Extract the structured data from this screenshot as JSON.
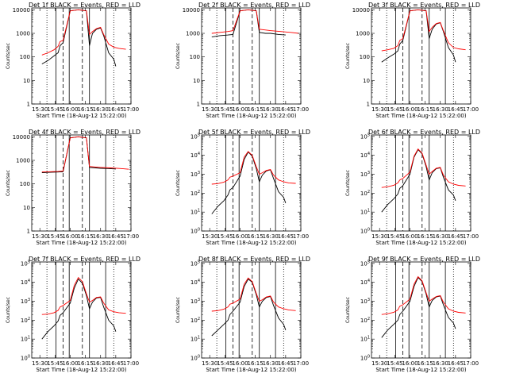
{
  "figure": {
    "xlabel": "Start Time (18-Aug-12 15:22:00)",
    "ylabel": "Counts/sec"
  },
  "colors": {
    "events": "#000000",
    "lld": "#ff0000",
    "axes": "#000000",
    "background": "#ffffff"
  },
  "chart_data": [
    {
      "type": "line",
      "title": "Det 1f BLACK = Events, RED = LLD",
      "yscale": "log",
      "xlim": [
        "15:22",
        "17:00"
      ],
      "ylim": [
        1,
        12000
      ],
      "xticks": [
        "15:30",
        "15:45",
        "16:00",
        "16:15",
        "16:30",
        "16:45",
        "17:00"
      ],
      "yticks": [
        "1",
        "10",
        "100",
        "1000",
        "10000"
      ],
      "series": [
        {
          "name": "Events",
          "color": "#000000",
          "x": [
            "15:32",
            "15:38",
            "15:44",
            "15:48",
            "15:50",
            "15:53",
            "16:00",
            "16:08",
            "16:16",
            "16:19",
            "16:22",
            "16:26",
            "16:30",
            "16:33",
            "16:38",
            "16:43",
            "16:45"
          ],
          "values": [
            50,
            70,
            110,
            150,
            300,
            400,
            9000,
            10000,
            9000,
            300,
            1000,
            1500,
            1700,
            800,
            150,
            80,
            40
          ]
        },
        {
          "name": "LLD",
          "color": "#ff0000",
          "x": [
            "15:32",
            "15:38",
            "15:44",
            "15:48",
            "15:50",
            "15:53",
            "16:00",
            "16:08",
            "16:16",
            "16:19",
            "16:22",
            "16:26",
            "16:30",
            "16:33",
            "16:38",
            "16:43",
            "16:48",
            "16:55"
          ],
          "values": [
            120,
            150,
            200,
            280,
            450,
            500,
            9000,
            10000,
            9000,
            900,
            1200,
            1600,
            1800,
            900,
            350,
            260,
            230,
            210
          ]
        }
      ]
    },
    {
      "type": "line",
      "title": "Det 2f BLACK = Events, RED = LLD",
      "yscale": "log",
      "xlim": [
        "15:22",
        "17:00"
      ],
      "ylim": [
        1,
        12000
      ],
      "xticks": [
        "15:30",
        "15:45",
        "16:00",
        "16:15",
        "16:30",
        "16:45",
        "17:00"
      ],
      "yticks": [
        "1",
        "10",
        "100",
        "1000",
        "10000"
      ],
      "series": [
        {
          "name": "Events",
          "color": "#000000",
          "x": [
            "15:32",
            "15:40",
            "15:48",
            "15:53",
            "16:00",
            "16:08",
            "16:16",
            "16:19",
            "16:25",
            "16:30",
            "16:38",
            "16:45"
          ],
          "values": [
            700,
            800,
            850,
            900,
            9000,
            10000,
            9000,
            1100,
            1000,
            1000,
            900,
            850
          ]
        },
        {
          "name": "LLD",
          "color": "#ff0000",
          "x": [
            "15:32",
            "15:40",
            "15:48",
            "15:53",
            "16:00",
            "16:08",
            "16:16",
            "16:19",
            "16:30",
            "16:40",
            "16:50",
            "16:58"
          ],
          "values": [
            1000,
            1100,
            1200,
            1300,
            9000,
            10000,
            9000,
            1500,
            1300,
            1200,
            1100,
            1000
          ]
        }
      ]
    },
    {
      "type": "line",
      "title": "Det 3f BLACK = Events, RED = LLD",
      "yscale": "log",
      "xlim": [
        "15:22",
        "17:00"
      ],
      "ylim": [
        1,
        12000
      ],
      "xticks": [
        "15:30",
        "15:45",
        "16:00",
        "16:15",
        "16:30",
        "16:45",
        "17:00"
      ],
      "yticks": [
        "1",
        "10",
        "100",
        "1000",
        "10000"
      ],
      "series": [
        {
          "name": "Events",
          "color": "#000000",
          "x": [
            "15:32",
            "15:38",
            "15:44",
            "15:48",
            "15:50",
            "15:53",
            "16:00",
            "16:08",
            "16:16",
            "16:19",
            "16:22",
            "16:26",
            "16:30",
            "16:33",
            "16:38",
            "16:43",
            "16:45"
          ],
          "values": [
            60,
            90,
            130,
            180,
            350,
            500,
            9000,
            10000,
            9000,
            600,
            1500,
            2500,
            2800,
            1200,
            250,
            120,
            60
          ]
        },
        {
          "name": "LLD",
          "color": "#ff0000",
          "x": [
            "15:32",
            "15:38",
            "15:44",
            "15:48",
            "15:50",
            "15:53",
            "16:00",
            "16:08",
            "16:16",
            "16:19",
            "16:22",
            "16:26",
            "16:30",
            "16:33",
            "16:38",
            "16:43",
            "16:48",
            "16:55"
          ],
          "values": [
            180,
            200,
            230,
            300,
            500,
            600,
            9000,
            10000,
            9000,
            1200,
            1800,
            2600,
            2900,
            1300,
            400,
            250,
            220,
            200
          ]
        }
      ]
    },
    {
      "type": "line",
      "title": "Det 4f BLACK = Events, RED = LLD",
      "yscale": "log",
      "xlim": [
        "15:22",
        "17:00"
      ],
      "ylim": [
        1,
        12000
      ],
      "xticks": [
        "15:30",
        "15:45",
        "16:00",
        "16:15",
        "16:30",
        "16:45",
        "17:00"
      ],
      "yticks": [
        "1",
        "10",
        "100",
        "1000",
        "10000"
      ],
      "series": [
        {
          "name": "Events",
          "color": "#000000",
          "x": [
            "15:32",
            "15:40",
            "15:48",
            "15:53",
            "16:00",
            "16:08",
            "16:16",
            "16:19",
            "16:25",
            "16:30",
            "16:38",
            "16:45"
          ],
          "values": [
            300,
            310,
            320,
            330,
            9000,
            10000,
            9000,
            500,
            480,
            460,
            450,
            430
          ]
        },
        {
          "name": "LLD",
          "color": "#ff0000",
          "x": [
            "15:32",
            "15:40",
            "15:48",
            "15:53",
            "16:00",
            "16:08",
            "16:16",
            "16:19",
            "16:30",
            "16:40",
            "16:50",
            "16:58"
          ],
          "values": [
            320,
            330,
            340,
            350,
            9000,
            10000,
            9000,
            550,
            500,
            480,
            450,
            420
          ]
        }
      ]
    },
    {
      "type": "line",
      "title": "Det 5f BLACK = Events, RED = LLD",
      "yscale": "log",
      "xlim": [
        "15:22",
        "17:00"
      ],
      "ylim": [
        1,
        120000
      ],
      "xticks": [
        "15:30",
        "15:45",
        "16:00",
        "16:15",
        "16:30",
        "16:45",
        "17:00"
      ],
      "yticks": [
        "10^0",
        "10^1",
        "10^2",
        "10^3",
        "10^4",
        "10^5"
      ],
      "series": [
        {
          "name": "Events",
          "color": "#000000",
          "x": [
            "15:32",
            "15:38",
            "15:44",
            "15:48",
            "15:50",
            "15:53",
            "16:00",
            "16:04",
            "16:08",
            "16:12",
            "16:16",
            "16:19",
            "16:22",
            "16:26",
            "16:30",
            "16:33",
            "16:38",
            "16:43",
            "16:45"
          ],
          "values": [
            8,
            20,
            40,
            80,
            150,
            200,
            800,
            6000,
            15000,
            9000,
            2000,
            400,
            900,
            1500,
            1700,
            600,
            120,
            60,
            30
          ]
        },
        {
          "name": "LLD",
          "color": "#ff0000",
          "x": [
            "15:32",
            "15:38",
            "15:44",
            "15:48",
            "15:50",
            "15:53",
            "16:00",
            "16:04",
            "16:08",
            "16:12",
            "16:16",
            "16:19",
            "16:22",
            "16:26",
            "16:30",
            "16:33",
            "16:38",
            "16:43",
            "16:48",
            "16:55"
          ],
          "values": [
            300,
            320,
            380,
            500,
            700,
            800,
            1200,
            8000,
            16000,
            10000,
            2500,
            1000,
            1200,
            1600,
            1800,
            900,
            500,
            400,
            350,
            330
          ]
        }
      ]
    },
    {
      "type": "line",
      "title": "Det 6f BLACK = Events, RED = LLD",
      "yscale": "log",
      "xlim": [
        "15:22",
        "17:00"
      ],
      "ylim": [
        1,
        120000
      ],
      "xticks": [
        "15:30",
        "15:45",
        "16:00",
        "16:15",
        "16:30",
        "16:45",
        "17:00"
      ],
      "yticks": [
        "10^0",
        "10^1",
        "10^2",
        "10^3",
        "10^4",
        "10^5"
      ],
      "series": [
        {
          "name": "Events",
          "color": "#000000",
          "x": [
            "15:32",
            "15:38",
            "15:44",
            "15:48",
            "15:50",
            "15:53",
            "16:00",
            "16:04",
            "16:08",
            "16:12",
            "16:16",
            "16:19",
            "16:22",
            "16:26",
            "16:30",
            "16:33",
            "16:38",
            "16:43",
            "16:45"
          ],
          "values": [
            10,
            25,
            50,
            90,
            180,
            250,
            1000,
            8000,
            20000,
            12000,
            2500,
            500,
            1200,
            2000,
            2200,
            700,
            150,
            80,
            40
          ]
        },
        {
          "name": "LLD",
          "color": "#ff0000",
          "x": [
            "15:32",
            "15:38",
            "15:44",
            "15:48",
            "15:50",
            "15:53",
            "16:00",
            "16:04",
            "16:08",
            "16:12",
            "16:16",
            "16:19",
            "16:22",
            "16:26",
            "16:30",
            "16:33",
            "16:38",
            "16:43",
            "16:48",
            "16:55"
          ],
          "values": [
            200,
            220,
            260,
            350,
            500,
            600,
            1300,
            9000,
            22000,
            13000,
            3000,
            1000,
            1400,
            2100,
            2300,
            900,
            400,
            300,
            260,
            240
          ]
        }
      ]
    },
    {
      "type": "line",
      "title": "Det 7f BLACK = Events, RED = LLD",
      "yscale": "log",
      "xlim": [
        "15:22",
        "17:00"
      ],
      "ylim": [
        1,
        120000
      ],
      "xticks": [
        "15:30",
        "15:45",
        "16:00",
        "16:15",
        "16:30",
        "16:45",
        "17:00"
      ],
      "yticks": [
        "10^0",
        "10^1",
        "10^2",
        "10^3",
        "10^4",
        "10^5"
      ],
      "series": [
        {
          "name": "Events",
          "color": "#000000",
          "x": [
            "15:32",
            "15:38",
            "15:44",
            "15:48",
            "15:50",
            "15:53",
            "16:00",
            "16:04",
            "16:08",
            "16:12",
            "16:16",
            "16:19",
            "16:22",
            "16:26",
            "16:30",
            "16:33",
            "16:38",
            "16:43",
            "16:45"
          ],
          "values": [
            10,
            25,
            50,
            90,
            180,
            250,
            800,
            5000,
            15000,
            9000,
            2000,
            400,
            900,
            1500,
            1600,
            500,
            100,
            50,
            25
          ]
        },
        {
          "name": "LLD",
          "color": "#ff0000",
          "x": [
            "15:32",
            "15:38",
            "15:44",
            "15:48",
            "15:50",
            "15:53",
            "16:00",
            "16:04",
            "16:08",
            "16:12",
            "16:16",
            "16:19",
            "16:22",
            "16:26",
            "16:30",
            "16:33",
            "16:38",
            "16:43",
            "16:48",
            "16:55"
          ],
          "values": [
            200,
            210,
            250,
            330,
            500,
            600,
            1100,
            7000,
            18000,
            11000,
            2500,
            900,
            1100,
            1600,
            1700,
            800,
            350,
            280,
            250,
            230
          ]
        }
      ]
    },
    {
      "type": "line",
      "title": "Det 8f BLACK = Events, RED = LLD",
      "yscale": "log",
      "xlim": [
        "15:22",
        "17:00"
      ],
      "ylim": [
        1,
        120000
      ],
      "xticks": [
        "15:30",
        "15:45",
        "16:00",
        "16:15",
        "16:30",
        "16:45",
        "17:00"
      ],
      "yticks": [
        "10^0",
        "10^1",
        "10^2",
        "10^3",
        "10^4",
        "10^5"
      ],
      "series": [
        {
          "name": "Events",
          "color": "#000000",
          "x": [
            "15:32",
            "15:38",
            "15:44",
            "15:48",
            "15:50",
            "15:53",
            "16:00",
            "16:04",
            "16:08",
            "16:12",
            "16:16",
            "16:19",
            "16:22",
            "16:26",
            "16:30",
            "16:33",
            "16:38",
            "16:43",
            "16:45"
          ],
          "values": [
            15,
            30,
            60,
            100,
            200,
            300,
            900,
            6000,
            15000,
            10000,
            2200,
            500,
            1000,
            1600,
            1800,
            600,
            130,
            60,
            30
          ]
        },
        {
          "name": "LLD",
          "color": "#ff0000",
          "x": [
            "15:32",
            "15:38",
            "15:44",
            "15:48",
            "15:50",
            "15:53",
            "16:00",
            "16:04",
            "16:08",
            "16:12",
            "16:16",
            "16:19",
            "16:22",
            "16:26",
            "16:30",
            "16:33",
            "16:38",
            "16:43",
            "16:48",
            "16:55"
          ],
          "values": [
            300,
            320,
            380,
            500,
            700,
            800,
            1300,
            8000,
            17000,
            11000,
            2600,
            1000,
            1200,
            1700,
            1900,
            900,
            500,
            400,
            350,
            320
          ]
        }
      ]
    },
    {
      "type": "line",
      "title": "Det 9f BLACK = Events, RED = LLD",
      "yscale": "log",
      "xlim": [
        "15:22",
        "17:00"
      ],
      "ylim": [
        1,
        120000
      ],
      "xticks": [
        "15:30",
        "15:45",
        "16:00",
        "16:15",
        "16:30",
        "16:45",
        "17:00"
      ],
      "yticks": [
        "10^0",
        "10^1",
        "10^2",
        "10^3",
        "10^4",
        "10^5"
      ],
      "series": [
        {
          "name": "Events",
          "color": "#000000",
          "x": [
            "15:32",
            "15:38",
            "15:44",
            "15:48",
            "15:50",
            "15:53",
            "16:00",
            "16:04",
            "16:08",
            "16:12",
            "16:16",
            "16:19",
            "16:22",
            "16:26",
            "16:30",
            "16:33",
            "16:38",
            "16:43",
            "16:45"
          ],
          "values": [
            12,
            30,
            60,
            100,
            200,
            300,
            1000,
            6000,
            18000,
            11000,
            2400,
            500,
            1100,
            1700,
            1900,
            650,
            140,
            70,
            35
          ]
        },
        {
          "name": "LLD",
          "color": "#ff0000",
          "x": [
            "15:32",
            "15:38",
            "15:44",
            "15:48",
            "15:50",
            "15:53",
            "16:00",
            "16:04",
            "16:08",
            "16:12",
            "16:16",
            "16:19",
            "16:22",
            "16:26",
            "16:30",
            "16:33",
            "16:38",
            "16:43",
            "16:48",
            "16:55"
          ],
          "values": [
            200,
            220,
            260,
            350,
            550,
            650,
            1300,
            8000,
            20000,
            12000,
            2800,
            1000,
            1300,
            1800,
            2000,
            900,
            400,
            300,
            260,
            240
          ]
        }
      ]
    }
  ]
}
